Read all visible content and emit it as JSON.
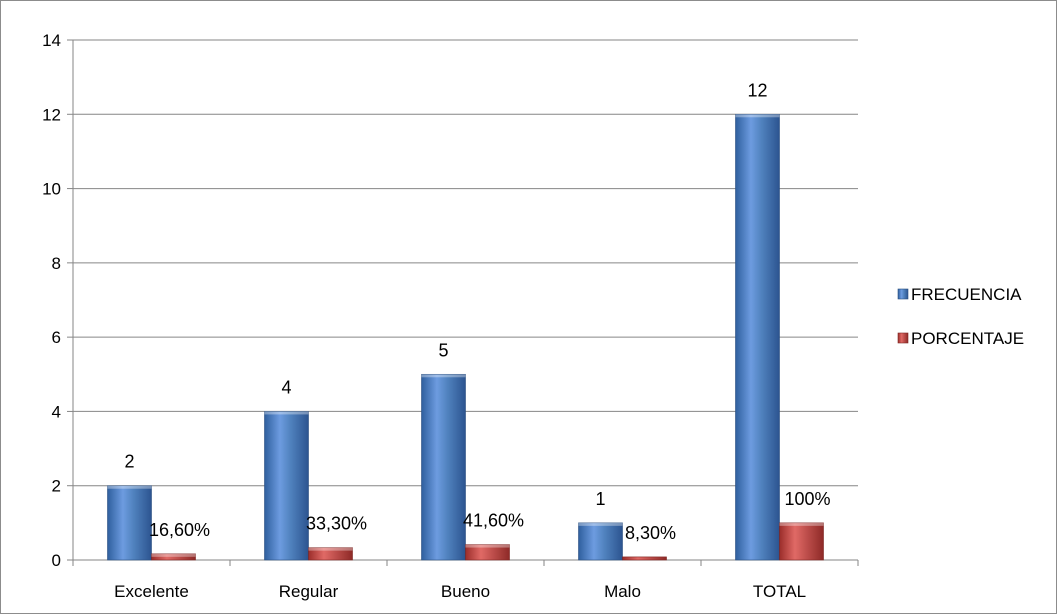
{
  "chart_data": {
    "type": "bar",
    "title": "",
    "xlabel": "",
    "ylabel": "",
    "categories": [
      "Excelente",
      "Regular",
      "Bueno",
      "Malo",
      "TOTAL"
    ],
    "ylim": [
      0,
      14
    ],
    "yticks": [
      0,
      2,
      4,
      6,
      8,
      10,
      12,
      14
    ],
    "ytick_labels": [
      "0",
      "2",
      "4",
      "6",
      "8",
      "10",
      "12",
      "14"
    ],
    "grid": true,
    "legend_position": "right",
    "series": [
      {
        "name": "FRECUENCIA",
        "color": "#4f81bd",
        "values": [
          2,
          4,
          5,
          1,
          12
        ],
        "labels": [
          "2",
          "4",
          "5",
          "1",
          "12"
        ]
      },
      {
        "name": "PORCENTAJE",
        "color": "#c0504d",
        "values": [
          0.166,
          0.333,
          0.416,
          0.083,
          1
        ],
        "labels": [
          "16,60%",
          "33,30%",
          "41,60%",
          "8,30%",
          "100%"
        ]
      }
    ]
  }
}
